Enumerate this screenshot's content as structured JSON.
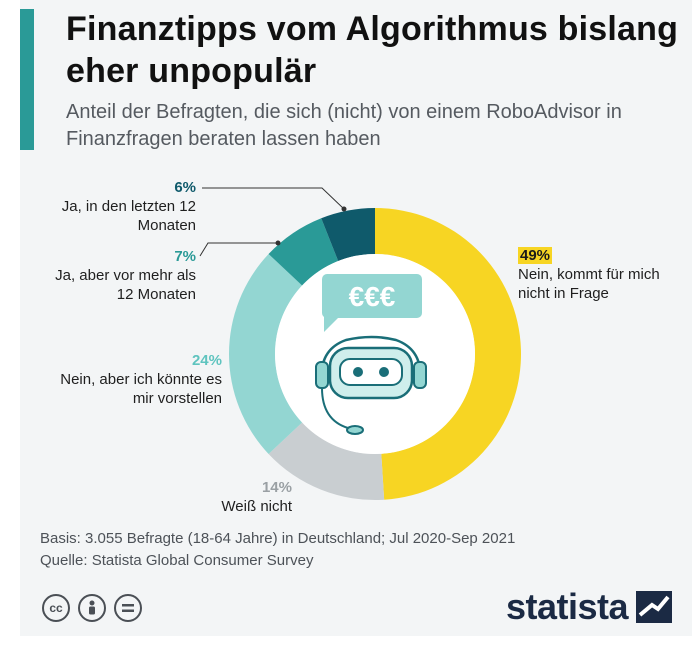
{
  "header": {
    "title": "Finanztipps vom Algorithmus bislang eher unpopulär",
    "subtitle": "Anteil der Befragten, die sich (nicht) von einem RoboAdvisor in Finanzfragen beraten lassen haben"
  },
  "chart_data": {
    "type": "pie",
    "donut": true,
    "categories": [
      "Nein, kommt für mich nicht in Frage",
      "Weiß nicht",
      "Nein, aber ich könnte es mir vorstellen",
      "Ja, aber vor mehr als 12 Monaten",
      "Ja, in den letzten 12 Monaten"
    ],
    "values": [
      49,
      14,
      24,
      7,
      6
    ],
    "value_labels": [
      "49%",
      "14%",
      "24%",
      "7%",
      "6%"
    ],
    "colors": [
      "#f7d523",
      "#c9ced1",
      "#93d6d2",
      "#2a9a97",
      "#0f5a6b"
    ]
  },
  "center_graphic": {
    "speech_bubble_text": "€€€",
    "icon": "robot-headset-icon"
  },
  "footer": {
    "basis": "Basis: 3.055 Befragte (18-64 Jahre) in Deutschland; Jul 2020-Sep 2021",
    "source": "Quelle: Statista Global Consumer Survey",
    "license_icons": [
      "cc-icon",
      "by-icon",
      "nd-icon"
    ]
  },
  "brand": {
    "name": "statista"
  }
}
